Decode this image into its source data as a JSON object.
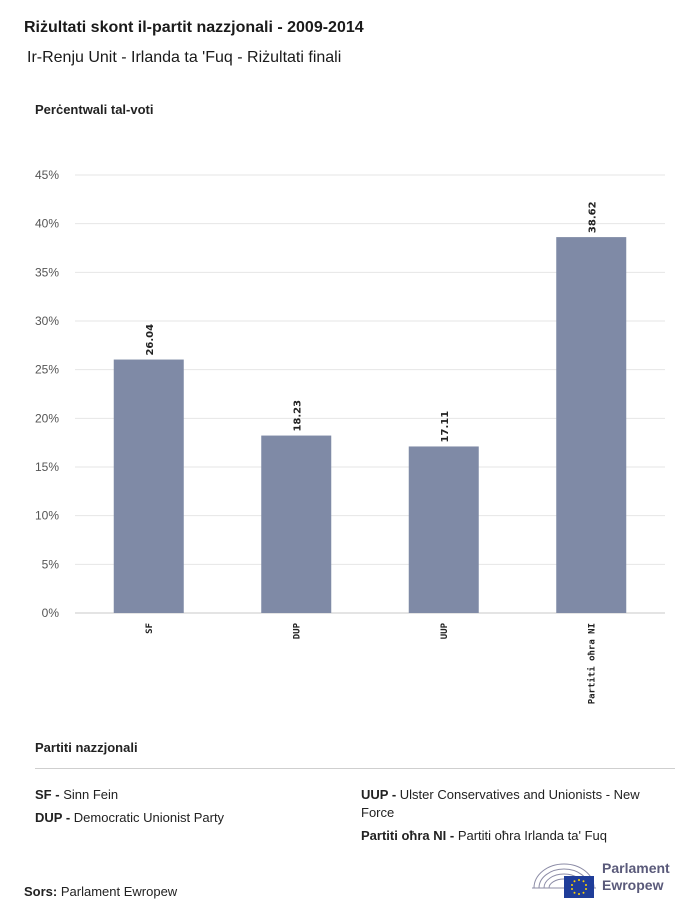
{
  "header": {
    "title": "Riżultati skont il-partit nazzjonali - 2009-2014",
    "subtitle": "Ir-Renju Unit - Irlanda ta 'Fuq - Riżultati finali"
  },
  "chart_data": {
    "type": "bar",
    "ylabel": "Perċentwali tal-voti",
    "categories": [
      "SF",
      "DUP",
      "UUP",
      "Partiti oħra NI"
    ],
    "values": [
      26.04,
      18.23,
      17.11,
      38.62
    ],
    "value_labels": [
      "26.04",
      "18.23",
      "17.11",
      "38.62"
    ],
    "ylim": [
      0,
      45
    ],
    "yticks": [
      "0%",
      "5%",
      "10%",
      "15%",
      "20%",
      "25%",
      "30%",
      "35%",
      "40%",
      "45%"
    ],
    "grid": true,
    "bar_color": "#7f8aa6"
  },
  "legend": {
    "title": "Partiti nazzjonali",
    "items": [
      {
        "abbr": "SF -",
        "name": "Sinn Fein"
      },
      {
        "abbr": "DUP -",
        "name": "Democratic Unionist Party"
      },
      {
        "abbr": "UUP -",
        "name": "Ulster Conservatives and Unionists - New Force"
      },
      {
        "abbr": "Partiti oħra NI -",
        "name": "Partiti oħra Irlanda ta' Fuq"
      }
    ]
  },
  "footer": {
    "source_label": "Sors:",
    "source_value": "Parlament Ewropew",
    "logo_line1": "Parlament",
    "logo_line2": "Ewropew"
  }
}
